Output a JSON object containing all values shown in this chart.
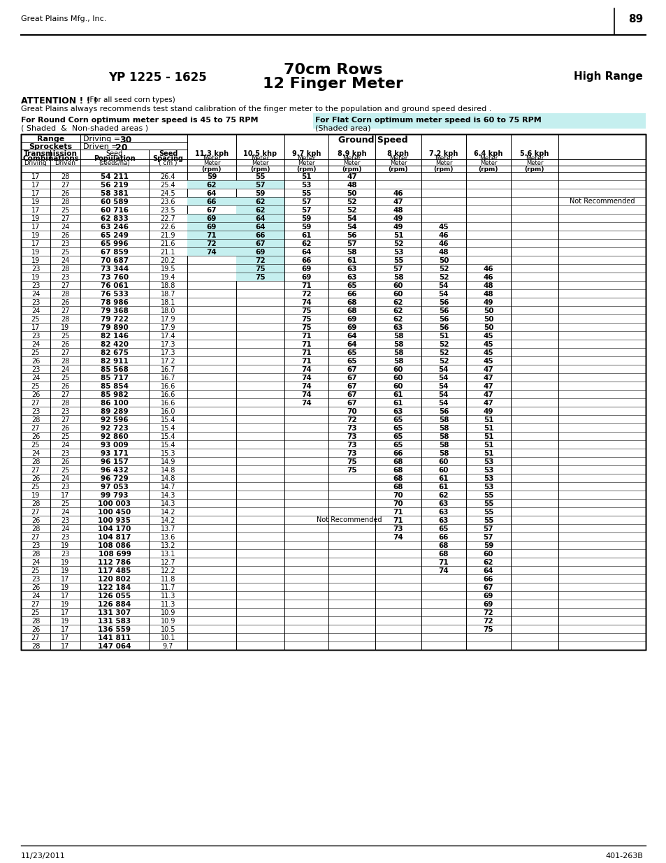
{
  "header_company": "Great Plains Mfg., Inc.",
  "page_number": "89",
  "footer_left": "11/23/2011",
  "footer_right": "401-263B",
  "title_left": "YP 1225 - 1625",
  "title_center_1": "70cm Rows",
  "title_center_2": "12 Finger Meter",
  "title_right": "High Range",
  "attention_bold": "ATTENTION ! ! !",
  "attention_note": "  (For all seed corn types)",
  "attention_line2": "Great Plains always recommends test stand calibration of the finger meter to the population and ground speed desired .",
  "round_corn_line1": "For Round Corn optimum meter speed is 45 to 75 RPM",
  "round_corn_line2": "( Shaded  &  Non-shaded areas )",
  "flat_corn_line1": "For Flat Corn optimum meter speed is 60 to 75 RPM",
  "flat_corn_line2": "(Shaded area)",
  "driving_val": "30",
  "driven_val": "20",
  "speed_labels": [
    "11.3 kph",
    "10.5 khp",
    "9.7 kph",
    "8.9 kph",
    "8 kph",
    "7.2 kph",
    "6.4 kph",
    "5.6 kph"
  ],
  "cyan_color": "#c5efef",
  "rows": [
    [
      17,
      28,
      "54 211",
      "26.4",
      "59",
      "55",
      "51",
      "47",
      "",
      "",
      "",
      ""
    ],
    [
      17,
      27,
      "56 219",
      "25.4",
      "62",
      "57",
      "53",
      "48",
      "",
      "",
      "",
      ""
    ],
    [
      17,
      26,
      "58 381",
      "24.5",
      "64",
      "59",
      "55",
      "50",
      "46",
      "",
      "",
      ""
    ],
    [
      19,
      28,
      "60 589",
      "23.6",
      "66",
      "62",
      "57",
      "52",
      "47",
      "",
      "",
      ""
    ],
    [
      17,
      25,
      "60 716",
      "23.5",
      "67",
      "62",
      "57",
      "52",
      "48",
      "",
      "",
      ""
    ],
    [
      19,
      27,
      "62 833",
      "22.7",
      "69",
      "64",
      "59",
      "54",
      "49",
      "",
      "",
      ""
    ],
    [
      17,
      24,
      "63 246",
      "22.6",
      "69",
      "64",
      "59",
      "54",
      "49",
      "45",
      "",
      ""
    ],
    [
      19,
      26,
      "65 249",
      "21.9",
      "71",
      "66",
      "61",
      "56",
      "51",
      "46",
      "",
      ""
    ],
    [
      17,
      23,
      "65 996",
      "21.6",
      "72",
      "67",
      "62",
      "57",
      "52",
      "46",
      "",
      ""
    ],
    [
      19,
      25,
      "67 859",
      "21.1",
      "74",
      "69",
      "64",
      "58",
      "53",
      "48",
      "",
      ""
    ],
    [
      19,
      24,
      "70 687",
      "20.2",
      "",
      "72",
      "66",
      "61",
      "55",
      "50",
      "",
      ""
    ],
    [
      23,
      28,
      "73 344",
      "19.5",
      "",
      "75",
      "69",
      "63",
      "57",
      "52",
      "46",
      ""
    ],
    [
      19,
      23,
      "73 760",
      "19.4",
      "",
      "75",
      "69",
      "63",
      "58",
      "52",
      "46",
      ""
    ],
    [
      23,
      27,
      "76 061",
      "18.8",
      "",
      "",
      "71",
      "65",
      "60",
      "54",
      "48",
      ""
    ],
    [
      24,
      28,
      "76 533",
      "18.7",
      "",
      "",
      "72",
      "66",
      "60",
      "54",
      "48",
      ""
    ],
    [
      23,
      26,
      "78 986",
      "18.1",
      "",
      "",
      "74",
      "68",
      "62",
      "56",
      "49",
      ""
    ],
    [
      24,
      27,
      "79 368",
      "18.0",
      "",
      "",
      "75",
      "68",
      "62",
      "56",
      "50",
      ""
    ],
    [
      25,
      28,
      "79 722",
      "17.9",
      "",
      "",
      "75",
      "69",
      "62",
      "56",
      "50",
      ""
    ],
    [
      17,
      19,
      "79 890",
      "17.9",
      "",
      "",
      "75",
      "69",
      "63",
      "56",
      "50",
      ""
    ],
    [
      23,
      25,
      "82 146",
      "17.4",
      "",
      "",
      "71",
      "64",
      "58",
      "51",
      "45",
      ""
    ],
    [
      24,
      26,
      "82 420",
      "17.3",
      "",
      "",
      "71",
      "64",
      "58",
      "52",
      "45",
      ""
    ],
    [
      25,
      27,
      "82 675",
      "17.3",
      "",
      "",
      "71",
      "65",
      "58",
      "52",
      "45",
      ""
    ],
    [
      26,
      28,
      "82 911",
      "17.2",
      "",
      "",
      "71",
      "65",
      "58",
      "52",
      "45",
      ""
    ],
    [
      23,
      24,
      "85 568",
      "16.7",
      "",
      "",
      "74",
      "67",
      "60",
      "54",
      "47",
      ""
    ],
    [
      24,
      25,
      "85 717",
      "16.7",
      "",
      "",
      "74",
      "67",
      "60",
      "54",
      "47",
      ""
    ],
    [
      25,
      26,
      "85 854",
      "16.6",
      "",
      "",
      "74",
      "67",
      "60",
      "54",
      "47",
      ""
    ],
    [
      26,
      27,
      "85 982",
      "16.6",
      "",
      "",
      "74",
      "67",
      "61",
      "54",
      "47",
      ""
    ],
    [
      27,
      28,
      "86 100",
      "16.6",
      "",
      "",
      "74",
      "67",
      "61",
      "54",
      "47",
      ""
    ],
    [
      23,
      23,
      "89 289",
      "16.0",
      "",
      "",
      "",
      "70",
      "63",
      "56",
      "49",
      ""
    ],
    [
      28,
      27,
      "92 596",
      "15.4",
      "",
      "",
      "",
      "72",
      "65",
      "58",
      "51",
      ""
    ],
    [
      27,
      26,
      "92 723",
      "15.4",
      "",
      "",
      "",
      "73",
      "65",
      "58",
      "51",
      ""
    ],
    [
      26,
      25,
      "92 860",
      "15.4",
      "",
      "",
      "",
      "73",
      "65",
      "58",
      "51",
      ""
    ],
    [
      25,
      24,
      "93 009",
      "15.4",
      "",
      "",
      "",
      "73",
      "65",
      "58",
      "51",
      ""
    ],
    [
      24,
      23,
      "93 171",
      "15.3",
      "",
      "",
      "",
      "73",
      "66",
      "58",
      "51",
      ""
    ],
    [
      28,
      26,
      "96 157",
      "14.9",
      "",
      "",
      "",
      "75",
      "68",
      "60",
      "53",
      ""
    ],
    [
      27,
      25,
      "96 432",
      "14.8",
      "",
      "",
      "",
      "75",
      "68",
      "60",
      "53",
      ""
    ],
    [
      26,
      24,
      "96 729",
      "14.8",
      "",
      "",
      "",
      "",
      "68",
      "61",
      "53",
      ""
    ],
    [
      25,
      23,
      "97 053",
      "14.7",
      "",
      "",
      "",
      "",
      "68",
      "61",
      "53",
      ""
    ],
    [
      19,
      17,
      "99 793",
      "14.3",
      "",
      "",
      "",
      "",
      "70",
      "62",
      "55",
      ""
    ],
    [
      28,
      25,
      "100 003",
      "14.3",
      "",
      "",
      "",
      "",
      "70",
      "63",
      "55",
      ""
    ],
    [
      27,
      24,
      "100 450",
      "14.2",
      "",
      "",
      "",
      "",
      "71",
      "63",
      "55",
      ""
    ],
    [
      26,
      23,
      "100 935",
      "14.2",
      "",
      "",
      "",
      "",
      "71",
      "63",
      "55",
      ""
    ],
    [
      28,
      24,
      "104 170",
      "13.7",
      "",
      "",
      "",
      "",
      "73",
      "65",
      "57",
      ""
    ],
    [
      27,
      23,
      "104 817",
      "13.6",
      "",
      "",
      "",
      "",
      "74",
      "66",
      "57",
      ""
    ],
    [
      23,
      19,
      "108 086",
      "13.2",
      "",
      "",
      "",
      "",
      "",
      "68",
      "59",
      ""
    ],
    [
      28,
      23,
      "108 699",
      "13.1",
      "",
      "",
      "",
      "",
      "",
      "68",
      "60",
      ""
    ],
    [
      24,
      19,
      "112 786",
      "12.7",
      "",
      "",
      "",
      "",
      "",
      "71",
      "62",
      ""
    ],
    [
      25,
      19,
      "117 485",
      "12.2",
      "",
      "",
      "",
      "",
      "",
      "74",
      "64",
      ""
    ],
    [
      23,
      17,
      "120 802",
      "11.8",
      "",
      "",
      "",
      "",
      "",
      "",
      "66",
      ""
    ],
    [
      26,
      19,
      "122 184",
      "11.7",
      "",
      "",
      "",
      "",
      "",
      "",
      "67",
      ""
    ],
    [
      24,
      17,
      "126 055",
      "11.3",
      "",
      "",
      "",
      "",
      "",
      "",
      "69",
      ""
    ],
    [
      27,
      19,
      "126 884",
      "11.3",
      "",
      "",
      "",
      "",
      "",
      "",
      "69",
      ""
    ],
    [
      25,
      17,
      "131 307",
      "10.9",
      "",
      "",
      "",
      "",
      "",
      "",
      "72",
      ""
    ],
    [
      28,
      19,
      "131 583",
      "10.9",
      "",
      "",
      "",
      "",
      "",
      "",
      "72",
      ""
    ],
    [
      26,
      17,
      "136 559",
      "10.5",
      "",
      "",
      "",
      "",
      "",
      "",
      "75",
      ""
    ],
    [
      27,
      17,
      "141 811",
      "10.1",
      "",
      "",
      "",
      "",
      "",
      "",
      "",
      ""
    ],
    [
      28,
      17,
      "147 064",
      "9.7",
      "",
      "",
      "",
      "",
      "",
      "",
      "",
      ""
    ]
  ],
  "nr1_row_idx": 3,
  "nr2_row_idx": 41
}
